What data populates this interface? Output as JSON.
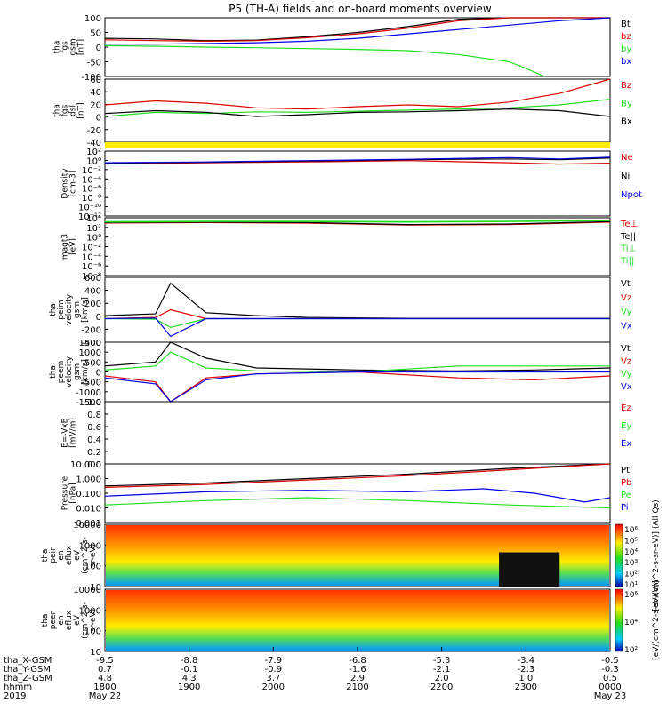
{
  "title": "P5 (TH-A) fields and on-board moments overview",
  "colors": {
    "black": "#000000",
    "red": "#dd0000",
    "green": "#22dd22",
    "blue": "#0000ee",
    "yellow": "#ffee00"
  },
  "chart_data": [
    {
      "type": "line",
      "id": "fgs_gsm",
      "ylabel": [
        "tha",
        "fgs",
        "gsm",
        "[nT]"
      ],
      "ylim": [
        -100,
        100
      ],
      "yticks": [
        "100",
        "50",
        "0",
        "-50",
        "-100"
      ],
      "series": [
        {
          "name": "Bt",
          "color": "black",
          "x": [
            0,
            0.1,
            0.2,
            0.3,
            0.4,
            0.5,
            0.6,
            0.7,
            0.8,
            0.9,
            1.0
          ],
          "y": [
            30,
            28,
            22,
            24,
            35,
            50,
            70,
            95,
            100,
            100,
            100
          ]
        },
        {
          "name": "bz",
          "color": "red",
          "x": [
            0,
            0.1,
            0.2,
            0.3,
            0.4,
            0.5,
            0.6,
            0.7,
            0.8,
            0.9,
            1.0
          ],
          "y": [
            25,
            22,
            20,
            22,
            32,
            45,
            65,
            90,
            100,
            100,
            100
          ]
        },
        {
          "name": "by",
          "color": "green",
          "x": [
            0,
            0.1,
            0.2,
            0.3,
            0.4,
            0.5,
            0.6,
            0.7,
            0.8,
            0.83,
            0.87
          ],
          "y": [
            5,
            3,
            0,
            -2,
            -5,
            -8,
            -12,
            -25,
            -50,
            -70,
            -100
          ]
        },
        {
          "name": "bx",
          "color": "blue",
          "x": [
            0,
            0.1,
            0.2,
            0.3,
            0.4,
            0.5,
            0.6,
            0.7,
            0.8,
            0.9,
            1.0
          ],
          "y": [
            10,
            10,
            12,
            15,
            20,
            30,
            45,
            60,
            75,
            90,
            100
          ]
        }
      ]
    },
    {
      "type": "line",
      "id": "fgs_dsl",
      "ylabel": [
        "tha",
        "fgs",
        "dsl",
        "[nT]"
      ],
      "ylim": [
        -50,
        60
      ],
      "yticks": [
        "60",
        "40",
        "20",
        "0",
        "-20",
        "-40"
      ],
      "series": [
        {
          "name": "Bz",
          "color": "red",
          "x": [
            0,
            0.1,
            0.2,
            0.3,
            0.4,
            0.5,
            0.6,
            0.7,
            0.8,
            0.9,
            1.0
          ],
          "y": [
            15,
            22,
            18,
            10,
            8,
            12,
            15,
            12,
            20,
            35,
            60
          ]
        },
        {
          "name": "By",
          "color": "green",
          "x": [
            0,
            0.1,
            0.2,
            0.3,
            0.4,
            0.5,
            0.6,
            0.7,
            0.8,
            0.9,
            1.0
          ],
          "y": [
            -5,
            2,
            0,
            3,
            2,
            4,
            6,
            8,
            10,
            15,
            25
          ]
        },
        {
          "name": "Bx",
          "color": "black",
          "x": [
            0,
            0.1,
            0.2,
            0.3,
            0.4,
            0.5,
            0.6,
            0.7,
            0.8,
            0.9,
            1.0
          ],
          "y": [
            0,
            5,
            2,
            -5,
            -2,
            2,
            3,
            5,
            8,
            5,
            -5
          ]
        }
      ]
    },
    {
      "type": "line",
      "id": "density",
      "ylabel": [
        "Density",
        "[cm-3]"
      ],
      "ylim": [
        -12,
        3
      ],
      "scale": "log",
      "yticks": [
        "10^2",
        "10^0",
        "10^-2",
        "10^-4",
        "10^-6",
        "10^-8",
        "10^-10",
        "10^-12"
      ],
      "series": [
        {
          "name": "Ne",
          "color": "red",
          "x": [
            0,
            0.2,
            0.4,
            0.6,
            0.8,
            0.9,
            1.0
          ],
          "y": [
            0.1,
            0.3,
            0.5,
            0.8,
            0.3,
            0,
            0.2
          ]
        },
        {
          "name": "Ni",
          "color": "black",
          "x": [
            0,
            0.2,
            0.4,
            0.6,
            0.8,
            0.9,
            1.0
          ],
          "y": [
            0.2,
            0.4,
            0.7,
            1.0,
            1.2,
            1.0,
            1.4
          ]
        },
        {
          "name": "Npot",
          "color": "blue",
          "x": [
            0,
            0.2,
            0.4,
            0.6,
            0.8,
            0.9,
            1.0
          ],
          "y": [
            0.3,
            0.5,
            0.8,
            1.1,
            1.5,
            1.2,
            1.6
          ]
        }
      ]
    },
    {
      "type": "line",
      "id": "temperature",
      "ylabel": [
        "magt3",
        "[eV]"
      ],
      "ylim": [
        -8,
        4
      ],
      "scale": "log",
      "yticks": [
        "10^4",
        "10^2",
        "10^0",
        "10^-2",
        "10^-4",
        "10^-6",
        "10^-8"
      ],
      "series": [
        {
          "name": "Te⊥",
          "color": "red",
          "x": [
            0,
            0.2,
            0.4,
            0.6,
            0.8,
            1.0
          ],
          "y": [
            2.9,
            3.0,
            2.9,
            2.5,
            2.6,
            3.1
          ]
        },
        {
          "name": "Te||",
          "color": "black",
          "x": [
            0,
            0.2,
            0.4,
            0.6,
            0.8,
            1.0
          ],
          "y": [
            3.0,
            3.1,
            3.0,
            2.6,
            2.7,
            3.2
          ]
        },
        {
          "name": "Ti⊥",
          "color": "green",
          "x": [
            0,
            0.2,
            0.4,
            0.6,
            0.8,
            1.0
          ],
          "y": [
            3.2,
            3.3,
            3.3,
            3.2,
            3.3,
            3.5
          ]
        },
        {
          "name": "Ti||",
          "color": "green",
          "x": [
            0,
            0.2,
            0.4,
            0.6,
            0.8,
            1.0
          ],
          "y": [
            3.1,
            3.2,
            3.2,
            3.1,
            3.2,
            3.4
          ]
        }
      ]
    },
    {
      "type": "line",
      "id": "peim_velocity",
      "ylabel": [
        "tha",
        "peim",
        "velocity",
        "gsm",
        "[km/s]"
      ],
      "ylim": [
        -400,
        700
      ],
      "yticks": [
        "600",
        "400",
        "200",
        "0",
        "-200",
        "-400"
      ],
      "series": [
        {
          "name": "Vt",
          "color": "black",
          "x": [
            0,
            0.1,
            0.13,
            0.2,
            0.3,
            0.4,
            0.6,
            0.8,
            1.0
          ],
          "y": [
            50,
            80,
            600,
            100,
            50,
            20,
            5,
            5,
            5
          ]
        },
        {
          "name": "Vz",
          "color": "red",
          "x": [
            0,
            0.1,
            0.13,
            0.2,
            0.3,
            0.4,
            0.6,
            0.8,
            1.0
          ],
          "y": [
            0,
            20,
            150,
            0,
            0,
            0,
            0,
            0,
            0
          ]
        },
        {
          "name": "Vy",
          "color": "green",
          "x": [
            0,
            0.1,
            0.13,
            0.2,
            0.3,
            0.4,
            0.6,
            0.8,
            1.0
          ],
          "y": [
            0,
            -10,
            -150,
            0,
            0,
            0,
            0,
            0,
            0
          ]
        },
        {
          "name": "Vx",
          "color": "blue",
          "x": [
            0,
            0.1,
            0.13,
            0.2,
            0.3,
            0.4,
            0.6,
            0.8,
            1.0
          ],
          "y": [
            0,
            10,
            -300,
            0,
            0,
            0,
            0,
            0,
            0
          ]
        }
      ]
    },
    {
      "type": "line",
      "id": "peem_velocity",
      "ylabel": [
        "tha",
        "peem",
        "velocity",
        "gsm",
        "[km/s]"
      ],
      "ylim": [
        -1500,
        1500
      ],
      "yticks": [
        "1500",
        "1000",
        "500",
        "0",
        "-500",
        "-1000",
        "-1500"
      ],
      "series": [
        {
          "name": "Vt",
          "color": "black",
          "x": [
            0,
            0.1,
            0.13,
            0.2,
            0.3,
            0.5,
            0.7,
            0.85,
            1.0
          ],
          "y": [
            300,
            500,
            1500,
            700,
            200,
            100,
            50,
            100,
            200
          ]
        },
        {
          "name": "Vz",
          "color": "red",
          "x": [
            0,
            0.1,
            0.13,
            0.2,
            0.3,
            0.5,
            0.7,
            0.85,
            1.0
          ],
          "y": [
            -200,
            -500,
            -1500,
            -300,
            -100,
            0,
            -300,
            -400,
            -200
          ]
        },
        {
          "name": "Vy",
          "color": "green",
          "x": [
            0,
            0.1,
            0.13,
            0.2,
            0.3,
            0.5,
            0.7,
            0.85,
            1.0
          ],
          "y": [
            100,
            300,
            1000,
            200,
            50,
            0,
            300,
            300,
            300
          ]
        },
        {
          "name": "Vx",
          "color": "blue",
          "x": [
            0,
            0.1,
            0.13,
            0.2,
            0.3,
            0.5,
            0.7,
            0.85,
            1.0
          ],
          "y": [
            -300,
            -600,
            -1500,
            -400,
            -100,
            0,
            0,
            0,
            0
          ]
        }
      ]
    },
    {
      "type": "line",
      "id": "efield",
      "ylabel": [
        "E=-VxB",
        "[mV/m]"
      ],
      "ylim": [
        0,
        1
      ],
      "yticks": [
        "1.0",
        "0.8",
        "0.6",
        "0.4",
        "0.2",
        "0.0"
      ],
      "series": [
        {
          "name": "Ez",
          "color": "red",
          "x": [],
          "y": []
        },
        {
          "name": "Ey",
          "color": "green",
          "x": [],
          "y": []
        },
        {
          "name": "Ex",
          "color": "blue",
          "x": [],
          "y": []
        }
      ]
    },
    {
      "type": "line",
      "id": "pressure",
      "ylabel": [
        "Pressure",
        "[nPa]"
      ],
      "ylim": [
        -3,
        1
      ],
      "scale": "log",
      "yticks": [
        "10.000",
        "1.000",
        "0.100",
        "0.010",
        "0.001"
      ],
      "series": [
        {
          "name": "Pt",
          "color": "black",
          "x": [
            0,
            0.2,
            0.4,
            0.6,
            0.8,
            1.0
          ],
          "y": [
            -0.5,
            -0.3,
            0,
            0.3,
            0.7,
            1.0
          ]
        },
        {
          "name": "Pb",
          "color": "red",
          "x": [
            0,
            0.2,
            0.4,
            0.6,
            0.8,
            1.0
          ],
          "y": [
            -0.6,
            -0.4,
            -0.1,
            0.2,
            0.6,
            1.0
          ]
        },
        {
          "name": "Pe",
          "color": "green",
          "x": [
            0,
            0.2,
            0.4,
            0.6,
            0.8,
            1.0
          ],
          "y": [
            -1.8,
            -1.5,
            -1.3,
            -1.5,
            -1.8,
            -2.0
          ]
        },
        {
          "name": "Pi",
          "color": "blue",
          "x": [
            0,
            0.2,
            0.4,
            0.6,
            0.75,
            0.85,
            0.95,
            1.0
          ],
          "y": [
            -1.2,
            -0.9,
            -0.8,
            -0.9,
            -0.7,
            -1.0,
            -1.6,
            -1.3
          ]
        }
      ]
    },
    {
      "type": "heatmap",
      "id": "peir_eflux",
      "ylabel": [
        "tha",
        "peir",
        "en",
        "eflux",
        "eV",
        "(cm^2-s-",
        "sr-eV)"
      ],
      "yticks": [
        "10000",
        "1000",
        "100",
        "10"
      ],
      "colorbar_ticks": [
        "10^6",
        "10^5",
        "10^4",
        "10^3",
        "10^2",
        "10^1"
      ],
      "colorbar_label": "[eV/(cm^2-s-sr-eV)] (All Qs)"
    },
    {
      "type": "heatmap",
      "id": "peer_eflux",
      "ylabel": [
        "tha",
        "peer",
        "en",
        "eflux",
        "eV",
        "(cm^2-s-",
        "sr-eV)"
      ],
      "yticks": [
        "10000",
        "1000",
        "100",
        "10"
      ],
      "colorbar_ticks": [
        "10^6",
        "10^4",
        "10^2"
      ],
      "colorbar_label": "[eV/(cm^2-s-sr-eV)]"
    }
  ],
  "x_axis": {
    "rows": [
      {
        "name": "tha_X-GSM",
        "values": [
          "-9.5",
          "-8.8",
          "-7.9",
          "-6.8",
          "-5.3",
          "-3.4",
          "-0.5"
        ]
      },
      {
        "name": "tha_Y-GSM",
        "values": [
          "0.7",
          "-0.1",
          "-0.9",
          "-1.6",
          "-2.1",
          "-2.3",
          "-0.3"
        ]
      },
      {
        "name": "tha_Z-GSM",
        "values": [
          "4.8",
          "4.3",
          "3.7",
          "2.9",
          "2.0",
          "1.0",
          "0.5"
        ]
      },
      {
        "name": "hhmm",
        "values": [
          "1800",
          "1900",
          "2000",
          "2100",
          "2200",
          "2300",
          "0000"
        ]
      }
    ],
    "year": "2019",
    "start_date": "May 22",
    "end_date": "May 23"
  }
}
